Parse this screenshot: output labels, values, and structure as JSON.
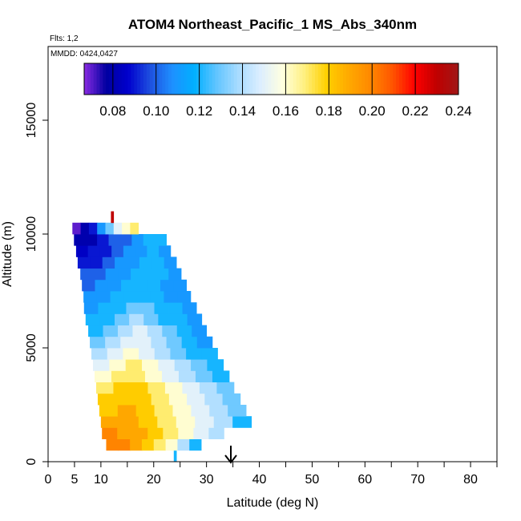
{
  "chart_data": {
    "type": "curtain",
    "title": "ATOM4 Northeast_Pacific_1 MS_Abs_340nm",
    "subtitle": "Flts: 1,2",
    "annotation": "MMDD: 0424,0427",
    "xlabel": "Latitude (deg N)",
    "ylabel": "Altitude (m)",
    "xlim": [
      0,
      85
    ],
    "xticks": [
      0,
      5,
      10,
      20,
      30,
      40,
      50,
      60,
      70,
      80
    ],
    "xminor_ticks": [
      15,
      25,
      35,
      45,
      55,
      65,
      75,
      85
    ],
    "ylim": [
      0,
      18240
    ],
    "yticks": [
      0,
      5000,
      10000,
      15000
    ],
    "colorbar": {
      "lim": [
        0.0667,
        0.24
      ],
      "ticks": [
        0.08,
        {
          "value": 0.1,
          "label": "0.10"
        },
        0.12,
        0.14,
        0.16,
        0.18,
        {
          "value": 0.2,
          "label": "0.20"
        },
        0.22,
        0.24
      ],
      "colors": [
        "#8a2be2",
        "#0000a0",
        "#0000cd",
        "#1e50e0",
        "#1e90ff",
        "#00b0ff",
        "#60c4ff",
        "#a8dcff",
        "#dceeff",
        "#ffffe0",
        "#fff080",
        "#ffd000",
        "#ffaa00",
        "#ff8800",
        "#ff5500",
        "#ff0000",
        "#c00000",
        "#a01818"
      ]
    },
    "rows": [
      {
        "altitude": 250,
        "lat_range": [
          23.8,
          24.3
        ],
        "values": [
          0.12
        ]
      },
      {
        "altitude": 750,
        "lat_range": [
          11,
          29
        ],
        "values": [
          0.2,
          0.2,
          0.19,
          0.18,
          0.17,
          0.16,
          0.14,
          0.12
        ]
      },
      {
        "altitude": 1250,
        "lat_range": [
          10.2,
          33.3
        ],
        "values": [
          0.2,
          0.19,
          0.19,
          0.18,
          0.17,
          0.16,
          0.15,
          0.14
        ]
      },
      {
        "altitude": 1750,
        "lat_range": [
          10,
          38.5
        ],
        "values": [
          0.19,
          0.19,
          0.18,
          0.17,
          0.16,
          0.15,
          0.14,
          0.12
        ]
      },
      {
        "altitude": 2250,
        "lat_range": [
          9.7,
          37.5
        ],
        "values": [
          0.18,
          0.19,
          0.18,
          0.17,
          0.16,
          0.15,
          0.14,
          0.13
        ]
      },
      {
        "altitude": 2750,
        "lat_range": [
          9.4,
          36.4
        ],
        "values": [
          0.18,
          0.18,
          0.18,
          0.17,
          0.16,
          0.15,
          0.14,
          0.13
        ]
      },
      {
        "altitude": 3250,
        "lat_range": [
          9.1,
          35.2
        ],
        "values": [
          0.17,
          0.18,
          0.18,
          0.17,
          0.16,
          0.15,
          0.14,
          0.13
        ]
      },
      {
        "altitude": 3750,
        "lat_range": [
          8.8,
          34.3
        ],
        "values": [
          0.16,
          0.17,
          0.17,
          0.16,
          0.15,
          0.14,
          0.13,
          0.12
        ]
      },
      {
        "altitude": 4250,
        "lat_range": [
          8.5,
          33.2
        ],
        "values": [
          0.15,
          0.16,
          0.17,
          0.16,
          0.15,
          0.14,
          0.13,
          0.12
        ]
      },
      {
        "altitude": 4750,
        "lat_range": [
          8.2,
          32.1
        ],
        "values": [
          0.14,
          0.15,
          0.16,
          0.15,
          0.14,
          0.13,
          0.12,
          0.12
        ]
      },
      {
        "altitude": 5250,
        "lat_range": [
          7.9,
          31.1
        ],
        "values": [
          0.13,
          0.14,
          0.15,
          0.15,
          0.14,
          0.13,
          0.12,
          0.11
        ]
      },
      {
        "altitude": 5750,
        "lat_range": [
          7.6,
          30
        ],
        "values": [
          0.12,
          0.13,
          0.14,
          0.15,
          0.14,
          0.13,
          0.12,
          0.11
        ]
      },
      {
        "altitude": 6250,
        "lat_range": [
          7.1,
          29.1
        ],
        "values": [
          0.12,
          0.12,
          0.13,
          0.14,
          0.13,
          0.12,
          0.12,
          0.11
        ]
      },
      {
        "altitude": 6750,
        "lat_range": [
          6.8,
          28.1
        ],
        "values": [
          0.11,
          0.12,
          0.12,
          0.13,
          0.13,
          0.12,
          0.12,
          0.11
        ]
      },
      {
        "altitude": 7250,
        "lat_range": [
          6.7,
          27
        ],
        "values": [
          0.11,
          0.11,
          0.12,
          0.12,
          0.12,
          0.12,
          0.11,
          0.11
        ]
      },
      {
        "altitude": 7750,
        "lat_range": [
          6.4,
          26.2
        ],
        "values": [
          0.1,
          0.11,
          0.11,
          0.12,
          0.12,
          0.12,
          0.11,
          0.11
        ]
      },
      {
        "altitude": 8250,
        "lat_range": [
          6.1,
          25.2
        ],
        "values": [
          0.1,
          0.1,
          0.11,
          0.11,
          0.12,
          0.12,
          0.12,
          0.11
        ]
      },
      {
        "altitude": 8750,
        "lat_range": [
          5.6,
          24.3
        ],
        "values": [
          0.09,
          0.09,
          0.1,
          0.11,
          0.11,
          0.12,
          0.12,
          0.11
        ]
      },
      {
        "altitude": 9250,
        "lat_range": [
          5.3,
          23.2
        ],
        "values": [
          0.085,
          0.09,
          0.09,
          0.1,
          0.11,
          0.11,
          0.12,
          0.11
        ]
      },
      {
        "altitude": 9750,
        "lat_range": [
          4.9,
          22.4
        ],
        "values": [
          0.08,
          0.08,
          0.09,
          0.1,
          0.1,
          0.11,
          0.12,
          0.12
        ]
      },
      {
        "altitude": 10250,
        "lat_range": [
          4.6,
          17.1
        ],
        "values": [
          0.07,
          0.08,
          0.09,
          0.11,
          0.13,
          0.15,
          0.16,
          0.17
        ]
      },
      {
        "altitude": 10750,
        "lat_range": [
          11.9,
          12.4
        ],
        "values": [
          0.23
        ]
      }
    ]
  }
}
